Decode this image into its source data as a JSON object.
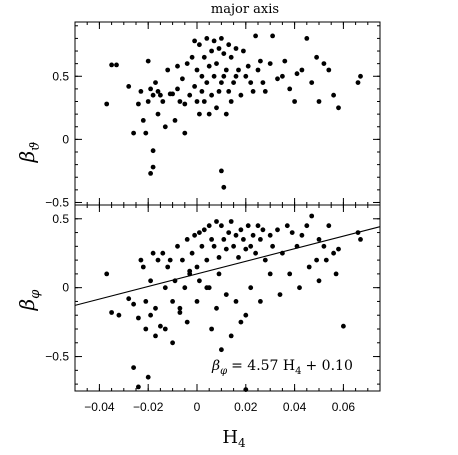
{
  "chart_data": [
    {
      "type": "scatter",
      "title": "major axis",
      "ylabel_symbol": "β",
      "ylabel_sub": "ϑ",
      "xlim": [
        -0.05,
        0.075
      ],
      "ylim": [
        -0.52,
        0.93
      ],
      "xticks": [
        -0.04,
        -0.02,
        0,
        0.02,
        0.04,
        0.06
      ],
      "yticks": [
        -0.5,
        0,
        0.5
      ],
      "ytick_labels": [
        "−0.5",
        "0",
        "0.5"
      ],
      "series": [
        {
          "x": [
            -0.037,
            -0.035,
            -0.033,
            -0.028,
            -0.026,
            -0.024,
            -0.023,
            -0.022,
            -0.021,
            -0.02,
            -0.019,
            -0.018,
            -0.018,
            -0.017,
            -0.016,
            -0.016,
            -0.015,
            -0.014,
            -0.013,
            -0.012,
            -0.011,
            -0.01,
            -0.009,
            -0.008,
            -0.008,
            -0.007,
            -0.006,
            -0.005,
            -0.005,
            -0.004,
            -0.003,
            -0.002,
            -0.001,
            -0.001,
            0.0,
            0.0,
            0.001,
            0.001,
            0.002,
            0.002,
            0.003,
            0.003,
            0.004,
            0.004,
            0.005,
            0.005,
            0.006,
            0.006,
            0.007,
            0.007,
            0.008,
            0.008,
            0.009,
            0.009,
            0.01,
            0.01,
            0.011,
            0.011,
            0.012,
            0.012,
            0.013,
            0.013,
            0.014,
            0.014,
            0.015,
            0.016,
            0.016,
            0.017,
            0.018,
            0.019,
            0.02,
            0.021,
            0.022,
            0.023,
            0.024,
            0.025,
            0.026,
            0.027,
            0.028,
            0.03,
            0.031,
            0.033,
            0.035,
            0.036,
            0.038,
            0.04,
            0.041,
            0.043,
            0.045,
            0.047,
            0.049,
            0.05,
            0.052,
            0.054,
            0.056,
            0.058,
            0.066,
            0.067,
            -0.019,
            -0.018,
            -0.02,
            0.01,
            0.011
          ],
          "y": [
            0.28,
            0.59,
            0.59,
            0.42,
            0.05,
            0.28,
            0.38,
            0.15,
            0.05,
            0.62,
            0.4,
            -0.09,
            0.35,
            0.45,
            0.38,
            0.2,
            0.35,
            0.3,
            0.1,
            0.55,
            0.36,
            0.36,
            0.15,
            0.58,
            0.4,
            0.3,
            0.48,
            0.28,
            0.05,
            0.6,
            0.35,
            0.65,
            0.42,
            0.78,
            0.3,
            0.55,
            0.75,
            0.2,
            0.5,
            0.38,
            0.65,
            0.3,
            0.8,
            0.45,
            0.2,
            0.58,
            0.7,
            0.35,
            0.78,
            0.5,
            0.25,
            0.6,
            0.72,
            0.38,
            0.45,
            0.8,
            0.5,
            0.68,
            0.2,
            0.55,
            0.38,
            0.75,
            0.3,
            0.65,
            0.45,
            0.5,
            0.72,
            0.55,
            0.35,
            0.7,
            0.5,
            0.58,
            0.45,
            0.38,
            0.82,
            0.55,
            0.62,
            0.45,
            0.38,
            0.6,
            0.82,
            0.48,
            0.5,
            0.62,
            0.4,
            0.3,
            0.52,
            0.55,
            0.8,
            0.45,
            0.65,
            0.3,
            0.6,
            0.55,
            0.35,
            0.25,
            0.45,
            0.5,
            -0.27,
            -0.22,
            0.3,
            -0.25,
            -0.38
          ]
        }
      ]
    },
    {
      "type": "scatter",
      "ylabel_symbol": "β",
      "ylabel_sub": "φ",
      "xlabel_main": "H",
      "xlabel_sub": "4",
      "xlim": [
        -0.05,
        0.075
      ],
      "ylim": [
        -0.75,
        0.6
      ],
      "xticks": [
        -0.04,
        -0.02,
        0,
        0.02,
        0.04,
        0.06
      ],
      "xtick_labels": [
        "−0.04",
        "−0.02",
        "0",
        "0.02",
        "0.04",
        "0.06"
      ],
      "yticks": [
        -0.5,
        0,
        0.5
      ],
      "ytick_labels": [
        "−0.5",
        "0",
        "0.5"
      ],
      "fit_line": {
        "slope": 4.57,
        "intercept": 0.1
      },
      "annotation": {
        "lhs_symbol": "β",
        "lhs_sub": "φ",
        "rhs": "= 4.57 H",
        "rhs_sub": "4",
        "tail": "+ 0.10"
      },
      "series": [
        {
          "x": [
            -0.037,
            -0.035,
            -0.032,
            -0.028,
            -0.026,
            -0.024,
            -0.023,
            -0.022,
            -0.021,
            -0.02,
            -0.019,
            -0.018,
            -0.017,
            -0.016,
            -0.015,
            -0.014,
            -0.013,
            -0.012,
            -0.011,
            -0.01,
            -0.009,
            -0.008,
            -0.007,
            -0.006,
            -0.005,
            -0.004,
            -0.003,
            -0.002,
            -0.001,
            0.0,
            0.001,
            0.002,
            0.003,
            0.004,
            0.005,
            0.006,
            0.007,
            0.008,
            0.009,
            0.01,
            0.011,
            0.012,
            0.013,
            0.014,
            0.015,
            0.016,
            0.017,
            0.018,
            0.019,
            0.02,
            0.021,
            0.022,
            0.023,
            0.024,
            0.025,
            0.026,
            0.027,
            0.028,
            0.03,
            0.031,
            0.033,
            0.035,
            0.037,
            0.039,
            0.041,
            0.043,
            0.045,
            0.047,
            0.049,
            0.05,
            0.052,
            0.054,
            0.056,
            0.058,
            0.066,
            0.067,
            -0.026,
            -0.024,
            -0.021,
            -0.019,
            -0.017,
            -0.013,
            -0.01,
            -0.007,
            -0.004,
            0.0,
            0.004,
            0.008,
            0.012,
            0.016,
            0.02,
            0.006,
            0.01,
            0.014,
            0.018,
            0.022,
            0.026,
            0.03,
            0.034,
            0.038,
            0.042,
            0.046,
            0.05,
            0.053,
            0.057,
            0.06,
            0.009,
            0.005,
            0.001,
            -0.003,
            0.02
          ],
          "y": [
            0.1,
            -0.18,
            -0.2,
            -0.08,
            -0.58,
            -0.72,
            0.2,
            0.15,
            -0.1,
            -0.65,
            0.05,
            0.25,
            -0.15,
            0.2,
            -0.28,
            0.25,
            -0.3,
            0.15,
            0.2,
            -0.4,
            0.05,
            0.3,
            -0.15,
            0.2,
            0.0,
            0.35,
            0.1,
            0.25,
            0.38,
            0.15,
            0.4,
            0.3,
            0.42,
            0.2,
            0.45,
            0.35,
            0.3,
            0.48,
            0.22,
            0.45,
            0.35,
            0.28,
            0.4,
            0.48,
            0.3,
            0.38,
            0.22,
            0.42,
            0.35,
            0.28,
            0.45,
            0.3,
            0.38,
            0.25,
            0.45,
            0.35,
            0.42,
            0.2,
            0.38,
            0.3,
            0.42,
            0.25,
            0.45,
            0.4,
            0.3,
            0.38,
            0.45,
            0.52,
            0.2,
            0.35,
            0.3,
            0.45,
            0.25,
            0.28,
            0.4,
            0.35,
            -0.12,
            -0.22,
            -0.3,
            -0.2,
            -0.35,
            0.0,
            -0.1,
            -0.18,
            -0.25,
            -0.1,
            0.0,
            -0.15,
            -0.05,
            -0.1,
            -0.2,
            -0.3,
            -0.45,
            -0.35,
            -0.25,
            0.0,
            -0.1,
            0.1,
            -0.05,
            0.1,
            0.0,
            0.15,
            0.05,
            0.2,
            0.1,
            -0.28,
            0.1,
            0.0,
            0.05,
            0.12,
            -0.74
          ]
        }
      ]
    }
  ]
}
